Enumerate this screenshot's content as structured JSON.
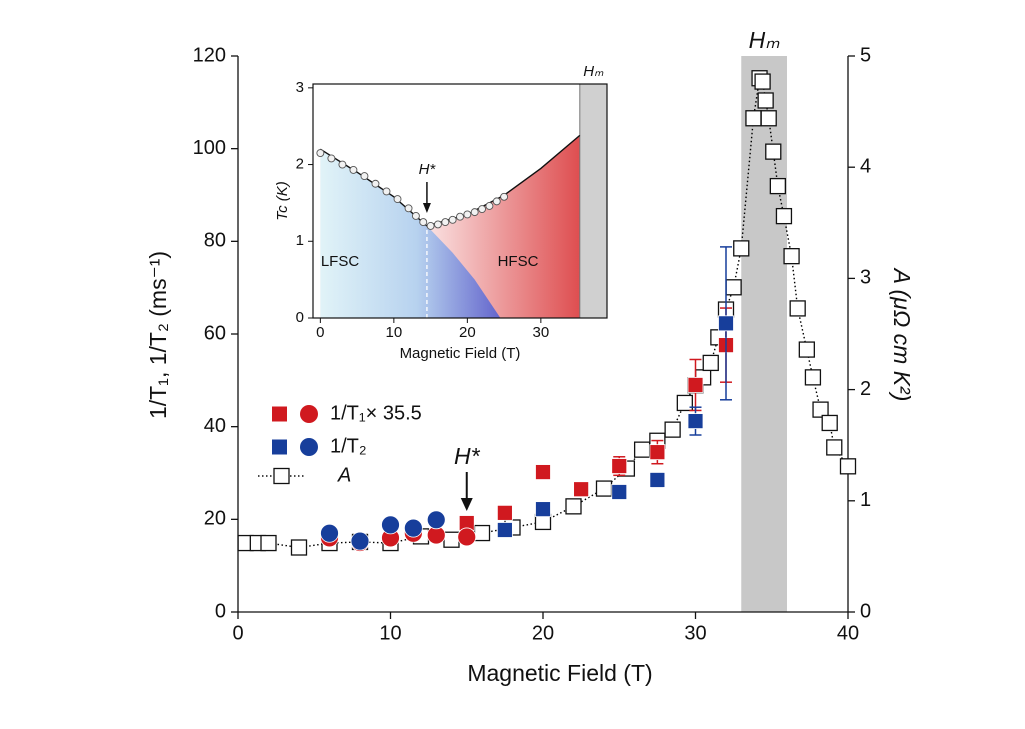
{
  "chart_data": {
    "type": "scatter",
    "x_label": "Magnetic Field (T)",
    "y_label": "1/T₁, 1/T₂ (ms⁻¹)",
    "y2_label": "A (μΩ cm K²)",
    "xlim": [
      0,
      40
    ],
    "xticks": [
      0,
      10,
      20,
      30,
      40
    ],
    "ylim": [
      0,
      120
    ],
    "yticks": [
      0,
      20,
      40,
      60,
      80,
      100,
      120
    ],
    "y2lim": [
      0,
      5
    ],
    "y2ticks": [
      0,
      1,
      2,
      3,
      4,
      5
    ],
    "band": {
      "x": [
        33,
        36
      ],
      "label": "Hₘ",
      "color": "#c8c8c8"
    },
    "annotation": {
      "text": "H*",
      "x": 15
    },
    "series": [
      {
        "name": "1/T₁× 35.5",
        "color": "#d0191f",
        "squares": {
          "x": [
            15,
            17.5,
            20,
            22.5,
            25,
            27.5,
            30,
            32
          ],
          "values": [
            19.2,
            21.4,
            30.2,
            26.5,
            31.5,
            34.5,
            49,
            57.6
          ],
          "errors": [
            null,
            null,
            null,
            null,
            2,
            2.5,
            5.5,
            8
          ]
        },
        "circles": {
          "x": [
            6,
            8,
            10,
            11.5,
            13,
            15
          ],
          "values": [
            16,
            15,
            16,
            17,
            16.6,
            16.2
          ]
        }
      },
      {
        "name": "1/T₂",
        "color": "#173e9b",
        "squares": {
          "x": [
            17.5,
            20,
            25,
            27.5,
            30,
            32
          ],
          "values": [
            17.7,
            22.2,
            25.9,
            28.5,
            41.2,
            62.3
          ],
          "errors": [
            null,
            null,
            null,
            1.5,
            3,
            16.5
          ]
        },
        "circles": {
          "x": [
            6,
            8,
            10,
            11.5,
            13
          ],
          "values": [
            17,
            15.3,
            18.8,
            18.1,
            19.9
          ]
        }
      },
      {
        "name": "A",
        "axis": "y2",
        "color": "#000000",
        "x": [
          0.5,
          1.3,
          2,
          4,
          6,
          8,
          10,
          12,
          14,
          16,
          18,
          20,
          22,
          24,
          25.5,
          26.5,
          27.5,
          28.5,
          29.3,
          30,
          30.5,
          31,
          31.5,
          32,
          32.5,
          33,
          33.8,
          34.2,
          34.4,
          34.6,
          34.8,
          35.1,
          35.4,
          35.8,
          36.3,
          36.7,
          37.3,
          37.7,
          38.2,
          38.8,
          39.1,
          40
        ],
        "values": [
          0.62,
          0.62,
          0.62,
          0.58,
          0.62,
          0.63,
          0.62,
          0.68,
          0.65,
          0.71,
          0.76,
          0.81,
          0.95,
          1.11,
          1.29,
          1.46,
          1.54,
          1.64,
          1.88,
          2.04,
          2.11,
          2.24,
          2.47,
          2.72,
          2.92,
          3.27,
          4.44,
          4.8,
          4.77,
          4.6,
          4.44,
          4.14,
          3.83,
          3.56,
          3.2,
          2.73,
          2.36,
          2.11,
          1.82,
          1.7,
          1.48,
          1.31
        ]
      }
    ],
    "inset": {
      "x_label": "Magnetic Field (T)",
      "y_label": "Tc (K)",
      "xlim": [
        -1,
        39
      ],
      "xticks": [
        0,
        10,
        20,
        30
      ],
      "ylim": [
        0,
        3.05
      ],
      "yticks": [
        0,
        1,
        2,
        3
      ],
      "hm": {
        "x": 35.3,
        "label": "Hₘ"
      },
      "hstar": {
        "x": 14.5,
        "label": "H*"
      },
      "lfsc": "LFSC",
      "hfsc": "HFSC",
      "points": {
        "x": [
          0,
          1.5,
          3,
          4.5,
          6,
          7.5,
          9,
          10.5,
          12,
          13,
          14,
          15,
          16,
          17,
          18,
          19,
          20,
          21,
          22,
          23,
          24,
          25
        ],
        "values": [
          2.15,
          2.08,
          2.0,
          1.93,
          1.85,
          1.75,
          1.65,
          1.55,
          1.43,
          1.33,
          1.25,
          1.2,
          1.22,
          1.25,
          1.28,
          1.32,
          1.35,
          1.38,
          1.42,
          1.46,
          1.52,
          1.58
        ]
      },
      "curve": {
        "x": [
          0,
          5,
          10,
          14.5,
          20,
          25,
          30,
          35.3
        ],
        "values": [
          2.2,
          1.9,
          1.58,
          1.2,
          1.35,
          1.6,
          1.95,
          2.38
        ]
      },
      "lfsc_boundary": {
        "x": [
          14.5,
          18,
          21,
          24.5
        ],
        "values": [
          1.2,
          0.85,
          0.5,
          0
        ]
      }
    }
  }
}
